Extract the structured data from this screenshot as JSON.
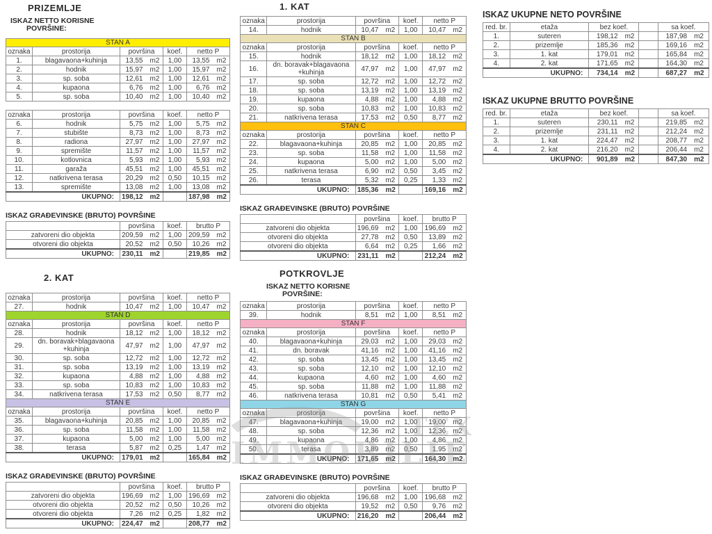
{
  "labels": {
    "col_oznaka": "oznaka",
    "col_prostorija": "prostorija",
    "col_povrsina": "površina",
    "col_koef": "koef.",
    "col_netto": "netto P",
    "col_brutto": "brutto P",
    "col_redbr": "red. br.",
    "col_etaza": "etaža",
    "col_bez_koef": "bez koef.",
    "col_sa_koef": "sa koef.",
    "ukupno": "UKUPNO:",
    "m2": "m2",
    "netto_title_line1": "ISKAZ NETTO KORISNE",
    "netto_title_line2": "POVRŠINE:",
    "bruto_title": "ISKAZ GRAĐEVINSKE (BRUTO) POVRŠINE"
  },
  "watermark": {
    "brand_top": "TEX",
    "brand_main": "IMMOBILIE"
  },
  "floors": {
    "prizemlje": {
      "title": "PRIZEMLJE",
      "netto1": [
        {
          "t": "band",
          "label": "STAN A",
          "c": "#ffee00"
        },
        {
          "t": "head"
        },
        {
          "t": "room",
          "n": "1.",
          "name": "blagavaona+kuhinja",
          "a": "13,55",
          "k": "1,00",
          "p": "13,55"
        },
        {
          "t": "room",
          "n": "2.",
          "name": "hodnik",
          "a": "15,97",
          "k": "1,00",
          "p": "15,97"
        },
        {
          "t": "room",
          "n": "3.",
          "name": "sp. soba",
          "a": "12,61",
          "k": "1,00",
          "p": "12,61"
        },
        {
          "t": "room",
          "n": "4.",
          "name": "kupaona",
          "a": "6,76",
          "k": "1,00",
          "p": "6,76"
        },
        {
          "t": "room",
          "n": "5.",
          "name": "sp. soba",
          "a": "10,40",
          "k": "1,00",
          "p": "10,40"
        }
      ],
      "netto2": [
        {
          "t": "head"
        },
        {
          "t": "room",
          "n": "6.",
          "name": "hodnik",
          "a": "5,75",
          "k": "1,00",
          "p": "5,75"
        },
        {
          "t": "room",
          "n": "7.",
          "name": "stubište",
          "a": "8,73",
          "k": "1,00",
          "p": "8,73"
        },
        {
          "t": "room",
          "n": "8.",
          "name": "radiona",
          "a": "27,97",
          "k": "1,00",
          "p": "27,97"
        },
        {
          "t": "room",
          "n": "9.",
          "name": "spremište",
          "a": "11,57",
          "k": "1,00",
          "p": "11,57"
        },
        {
          "t": "room",
          "n": "10.",
          "name": "kotlovnica",
          "a": "5,93",
          "k": "1,00",
          "p": "5,93"
        },
        {
          "t": "room",
          "n": "11.",
          "name": "garaža",
          "a": "45,51",
          "k": "1,00",
          "p": "45,51"
        },
        {
          "t": "room",
          "n": "12.",
          "name": "natkrivena terasa",
          "a": "20,29",
          "k": "0,50",
          "p": "10,15"
        },
        {
          "t": "room",
          "n": "13.",
          "name": "spremište",
          "a": "13,08",
          "k": "1,00",
          "p": "13,08"
        },
        {
          "t": "total",
          "a": "198,12",
          "p": "187,98"
        }
      ],
      "bruto": [
        {
          "t": "head"
        },
        {
          "t": "row",
          "label": "zatvoreni dio objekta",
          "a": "209,59",
          "k": "1,00",
          "p": "209,59"
        },
        {
          "t": "row",
          "label": "otvoreni dio objekta",
          "a": "20,52",
          "k": "0,50",
          "p": "10,26"
        },
        {
          "t": "total",
          "a": "230,11",
          "p": "219,85"
        }
      ]
    },
    "kat1": {
      "title": "1. KAT",
      "netto": [
        {
          "t": "head"
        },
        {
          "t": "room",
          "n": "14.",
          "name": "hodnik",
          "a": "10,47",
          "k": "1,00",
          "p": "10,47"
        },
        {
          "t": "band",
          "label": "STAN B",
          "c": "#eae0b6"
        },
        {
          "t": "head"
        },
        {
          "t": "room",
          "n": "15.",
          "name": "hodnik",
          "a": "18,12",
          "k": "1,00",
          "p": "18,12"
        },
        {
          "t": "room",
          "n": "16.",
          "name": "dn. boravak+blagavaona +kuhinja",
          "a": "47,97",
          "k": "1,00",
          "p": "47,97"
        },
        {
          "t": "room",
          "n": "17.",
          "name": "sp. soba",
          "a": "12,72",
          "k": "1,00",
          "p": "12,72"
        },
        {
          "t": "room",
          "n": "18.",
          "name": "sp. soba",
          "a": "13,19",
          "k": "1,00",
          "p": "13,19"
        },
        {
          "t": "room",
          "n": "19.",
          "name": "kupaona",
          "a": "4,88",
          "k": "1,00",
          "p": "4,88"
        },
        {
          "t": "room",
          "n": "20.",
          "name": "sp. soba",
          "a": "10,83",
          "k": "1,00",
          "p": "10,83"
        },
        {
          "t": "room",
          "n": "21.",
          "name": "natkrivena terasa",
          "a": "17,53",
          "k": "0,50",
          "p": "8,77"
        },
        {
          "t": "band",
          "label": "STAN C",
          "c": "#ffc010"
        },
        {
          "t": "head"
        },
        {
          "t": "room",
          "n": "22.",
          "name": "blagavaona+kuhinja",
          "a": "20,85",
          "k": "1,00",
          "p": "20,85"
        },
        {
          "t": "room",
          "n": "23.",
          "name": "sp. soba",
          "a": "11,58",
          "k": "1,00",
          "p": "11,58"
        },
        {
          "t": "room",
          "n": "24.",
          "name": "kupaona",
          "a": "5,00",
          "k": "1,00",
          "p": "5,00"
        },
        {
          "t": "room",
          "n": "25.",
          "name": "natkrivena terasa",
          "a": "6,90",
          "k": "0,50",
          "p": "3,45"
        },
        {
          "t": "room",
          "n": "26.",
          "name": "terasa",
          "a": "5,32",
          "k": "0,25",
          "p": "1,33"
        },
        {
          "t": "total",
          "a": "185,36",
          "p": "169,16"
        }
      ],
      "bruto": [
        {
          "t": "head"
        },
        {
          "t": "row",
          "label": "zatvoreni dio objekta",
          "a": "196,69",
          "k": "1,00",
          "p": "196,69"
        },
        {
          "t": "row",
          "label": "otvoreni dio objekta",
          "a": "27,78",
          "k": "0,50",
          "p": "13,89"
        },
        {
          "t": "row",
          "label": "otvoreni dio objekta",
          "a": "6,64",
          "k": "0,25",
          "p": "1,66"
        },
        {
          "t": "total",
          "a": "231,11",
          "p": "212,24"
        }
      ]
    },
    "kat2": {
      "title": "2. KAT",
      "netto": [
        {
          "t": "head"
        },
        {
          "t": "room",
          "n": "27.",
          "name": "hodnik",
          "a": "10,47",
          "k": "1,00",
          "p": "10,47"
        },
        {
          "t": "band",
          "label": "STAN D",
          "c": "#9fd42e"
        },
        {
          "t": "head"
        },
        {
          "t": "room",
          "n": "28.",
          "name": "hodnik",
          "a": "18,12",
          "k": "1,00",
          "p": "18,12"
        },
        {
          "t": "room",
          "n": "29.",
          "name": "dn. boravak+blagavaona +kuhinja",
          "a": "47,97",
          "k": "1,00",
          "p": "47,97"
        },
        {
          "t": "room",
          "n": "30.",
          "name": "sp. soba",
          "a": "12,72",
          "k": "1,00",
          "p": "12,72"
        },
        {
          "t": "room",
          "n": "31.",
          "name": "sp. soba",
          "a": "13,19",
          "k": "1,00",
          "p": "13,19"
        },
        {
          "t": "room",
          "n": "32.",
          "name": "kupaona",
          "a": "4,88",
          "k": "1,00",
          "p": "4,88"
        },
        {
          "t": "room",
          "n": "33.",
          "name": "sp. soba",
          "a": "10,83",
          "k": "1,00",
          "p": "10,83"
        },
        {
          "t": "room",
          "n": "34.",
          "name": "natkrivena terasa",
          "a": "17,53",
          "k": "0,50",
          "p": "8,77"
        },
        {
          "t": "band",
          "label": "STAN E",
          "c": "#c8c1e5"
        },
        {
          "t": "head"
        },
        {
          "t": "room",
          "n": "35.",
          "name": "blagavaona+kuhinja",
          "a": "20,85",
          "k": "1,00",
          "p": "20,85"
        },
        {
          "t": "room",
          "n": "36.",
          "name": "sp. soba",
          "a": "11,58",
          "k": "1,00",
          "p": "11,58"
        },
        {
          "t": "room",
          "n": "37.",
          "name": "kupaona",
          "a": "5,00",
          "k": "1,00",
          "p": "5,00"
        },
        {
          "t": "room",
          "n": "38.",
          "name": "terasa",
          "a": "5,87",
          "k": "0,25",
          "p": "1,47"
        },
        {
          "t": "total",
          "a": "179,01",
          "p": "165,84"
        }
      ],
      "bruto": [
        {
          "t": "head"
        },
        {
          "t": "row",
          "label": "zatvoreni dio objekta",
          "a": "196,69",
          "k": "1,00",
          "p": "196,69"
        },
        {
          "t": "row",
          "label": "otvoreni dio objekta",
          "a": "20,52",
          "k": "0,50",
          "p": "10,26"
        },
        {
          "t": "row",
          "label": "otvoreni dio objekta",
          "a": "7,26",
          "k": "0,25",
          "p": "1,82"
        },
        {
          "t": "total",
          "a": "224,47",
          "p": "208,77"
        }
      ]
    },
    "potkrovlje": {
      "title": "POTKROVLJE",
      "netto": [
        {
          "t": "head"
        },
        {
          "t": "room",
          "n": "39.",
          "name": "hodnik",
          "a": "8,51",
          "k": "1,00",
          "p": "8,51"
        },
        {
          "t": "band",
          "label": "STAN F",
          "c": "#f6b0c3"
        },
        {
          "t": "head"
        },
        {
          "t": "room",
          "n": "40.",
          "name": "blagavaona+kuhinja",
          "a": "29,03",
          "k": "1,00",
          "p": "29,03"
        },
        {
          "t": "room",
          "n": "41.",
          "name": "dn. boravak",
          "a": "41,16",
          "k": "1,00",
          "p": "41,16"
        },
        {
          "t": "room",
          "n": "42.",
          "name": "sp. soba",
          "a": "13,45",
          "k": "1,00",
          "p": "13,45"
        },
        {
          "t": "room",
          "n": "43.",
          "name": "sp. soba",
          "a": "12,10",
          "k": "1,00",
          "p": "12,10"
        },
        {
          "t": "room",
          "n": "44.",
          "name": "kupaona",
          "a": "4,60",
          "k": "1,00",
          "p": "4,60"
        },
        {
          "t": "room",
          "n": "45.",
          "name": "sp. soba",
          "a": "11,88",
          "k": "1,00",
          "p": "11,88"
        },
        {
          "t": "room",
          "n": "46.",
          "name": "natkrivena terasa",
          "a": "10,81",
          "k": "0,50",
          "p": "5,41"
        },
        {
          "t": "band",
          "label": "STAN G",
          "c": "#8fd5e7"
        },
        {
          "t": "head"
        },
        {
          "t": "room",
          "n": "47.",
          "name": "blagavaona+kuhinja",
          "a": "19,00",
          "k": "1,00",
          "p": "19,00"
        },
        {
          "t": "room",
          "n": "48.",
          "name": "sp. soba",
          "a": "12,36",
          "k": "1,00",
          "p": "12,36"
        },
        {
          "t": "room",
          "n": "49.",
          "name": "kupaona",
          "a": "4,86",
          "k": "1,00",
          "p": "4,86"
        },
        {
          "t": "room",
          "n": "50.",
          "name": "terasa",
          "a": "3,89",
          "k": "0,50",
          "p": "1,95"
        },
        {
          "t": "total",
          "a": "171,65",
          "p": "164,30"
        }
      ],
      "bruto": [
        {
          "t": "head"
        },
        {
          "t": "row",
          "label": "zatvoreni dio objekta",
          "a": "196,68",
          "k": "1,00",
          "p": "196,68"
        },
        {
          "t": "row",
          "label": "otvoreni dio objekta",
          "a": "19,52",
          "k": "0,50",
          "p": "9,76"
        },
        {
          "t": "total",
          "a": "216,20",
          "p": "206,44"
        }
      ]
    }
  },
  "summaries": {
    "neto": {
      "title": "ISKAZ UKUPNE NETO POVRŠINE",
      "rows": [
        {
          "t": "head"
        },
        {
          "t": "row",
          "n": "1.",
          "label": "suteren",
          "a": "198,12",
          "p": "187,98"
        },
        {
          "t": "row",
          "n": "2.",
          "label": "prizemlje",
          "a": "185,36",
          "p": "169,16"
        },
        {
          "t": "row",
          "n": "3.",
          "label": "1. kat",
          "a": "179,01",
          "p": "165,84"
        },
        {
          "t": "row",
          "n": "4.",
          "label": "2. kat",
          "a": "171,65",
          "p": "164,30"
        },
        {
          "t": "total",
          "a": "734,14",
          "p": "687,27"
        }
      ]
    },
    "brutto": {
      "title": "ISKAZ UKUPNE BRUTTO POVRŠINE",
      "rows": [
        {
          "t": "head"
        },
        {
          "t": "row",
          "n": "1.",
          "label": "suteren",
          "a": "230,11",
          "p": "219,85"
        },
        {
          "t": "row",
          "n": "2.",
          "label": "prizemlje",
          "a": "231,11",
          "p": "212,24"
        },
        {
          "t": "row",
          "n": "3.",
          "label": "1. kat",
          "a": "224,47",
          "p": "208,77"
        },
        {
          "t": "row",
          "n": "4.",
          "label": "2. kat",
          "a": "216,20",
          "p": "206,44"
        },
        {
          "t": "total",
          "a": "901,89",
          "p": "847,30"
        }
      ]
    }
  }
}
